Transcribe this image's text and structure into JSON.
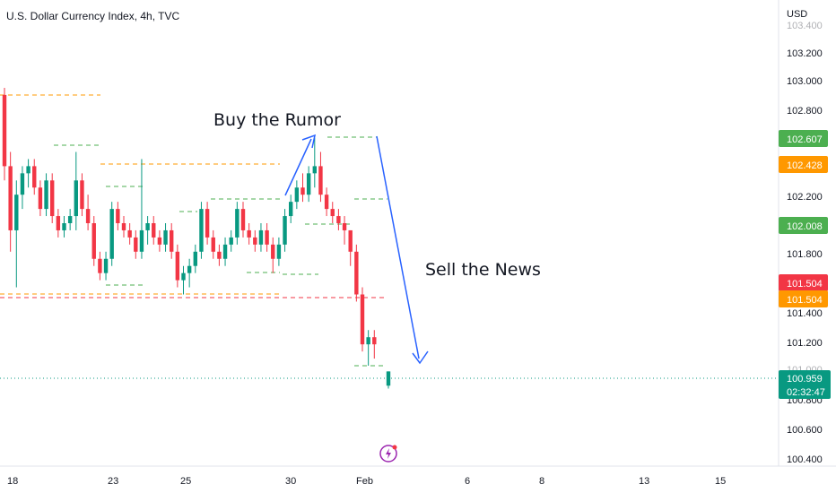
{
  "header": {
    "title": "U.S. Dollar Currency Index, 4h, TVC"
  },
  "chart_data": {
    "type": "candlestick",
    "currency": "USD",
    "y_ticks": [
      "103.400",
      "103.200",
      "103.000",
      "102.800",
      "102.200",
      "101.800",
      "101.400",
      "101.200",
      "101.000",
      "100.800",
      "100.600",
      "100.400"
    ],
    "x_ticks": [
      "18",
      "23",
      "25",
      "30",
      "Feb",
      "6",
      "8",
      "13",
      "15"
    ],
    "colors": {
      "up": "#089981",
      "down": "#f23645",
      "arrow": "#2962ff",
      "dash_orange": "#ff9800",
      "dash_green": "#4caf50",
      "dash_red": "#f23645"
    },
    "annotations": [
      {
        "text": "Buy the Rumor"
      },
      {
        "text": "Sell the News"
      }
    ],
    "price_badges": [
      {
        "label": "102.607",
        "color": "#4caf50"
      },
      {
        "label": "102.428",
        "color": "#ff9800"
      },
      {
        "label": "102.008",
        "color": "#4caf50"
      },
      {
        "label": "101.504",
        "color": "#f23645"
      },
      {
        "label": "101.504",
        "color": "#ff9800"
      },
      {
        "label": "100.959",
        "sublabel": "02:32:47",
        "color": "#089981"
      }
    ],
    "candles": [
      [
        102.9,
        102.95,
        102.3,
        102.4
      ],
      [
        102.4,
        102.5,
        101.8,
        101.95
      ],
      [
        101.95,
        102.3,
        101.55,
        102.2
      ],
      [
        102.2,
        102.4,
        102.1,
        102.35
      ],
      [
        102.35,
        102.45,
        102.25,
        102.4
      ],
      [
        102.4,
        102.45,
        102.2,
        102.25
      ],
      [
        102.25,
        102.3,
        102.05,
        102.1
      ],
      [
        102.1,
        102.35,
        102.05,
        102.3
      ],
      [
        102.3,
        102.35,
        102.0,
        102.05
      ],
      [
        102.05,
        102.1,
        101.9,
        101.95
      ],
      [
        101.95,
        102.05,
        101.9,
        102.0
      ],
      [
        102.0,
        102.1,
        101.95,
        102.05
      ],
      [
        102.05,
        102.5,
        101.95,
        102.3
      ],
      [
        102.3,
        102.35,
        102.05,
        102.1
      ],
      [
        102.1,
        102.2,
        101.95,
        102.0
      ],
      [
        102.0,
        102.05,
        101.7,
        101.75
      ],
      [
        101.75,
        101.8,
        101.6,
        101.65
      ],
      [
        101.65,
        101.8,
        101.6,
        101.75
      ],
      [
        101.75,
        102.15,
        101.7,
        102.1
      ],
      [
        102.1,
        102.15,
        101.95,
        102.0
      ],
      [
        102.0,
        102.05,
        101.9,
        101.95
      ],
      [
        101.95,
        102.0,
        101.85,
        101.9
      ],
      [
        101.9,
        101.95,
        101.75,
        101.8
      ],
      [
        101.8,
        102.45,
        101.75,
        101.95
      ],
      [
        101.95,
        102.05,
        101.85,
        102.0
      ],
      [
        102.0,
        102.05,
        101.85,
        101.9
      ],
      [
        101.9,
        101.95,
        101.8,
        101.85
      ],
      [
        101.85,
        102.0,
        101.8,
        101.95
      ],
      [
        101.95,
        102.0,
        101.75,
        101.8
      ],
      [
        101.8,
        101.85,
        101.55,
        101.6
      ],
      [
        101.6,
        101.7,
        101.5,
        101.65
      ],
      [
        101.65,
        101.75,
        101.55,
        101.7
      ],
      [
        101.7,
        101.85,
        101.65,
        101.8
      ],
      [
        101.8,
        102.15,
        101.75,
        102.1
      ],
      [
        102.1,
        102.15,
        101.85,
        101.9
      ],
      [
        101.9,
        101.95,
        101.75,
        101.8
      ],
      [
        101.8,
        101.85,
        101.7,
        101.75
      ],
      [
        101.75,
        101.9,
        101.7,
        101.85
      ],
      [
        101.85,
        101.95,
        101.8,
        101.9
      ],
      [
        101.9,
        102.15,
        101.85,
        102.1
      ],
      [
        102.1,
        102.15,
        101.9,
        101.95
      ],
      [
        101.95,
        102.0,
        101.85,
        101.9
      ],
      [
        101.9,
        101.95,
        101.8,
        101.85
      ],
      [
        101.85,
        102.0,
        101.8,
        101.95
      ],
      [
        101.95,
        102.0,
        101.8,
        101.85
      ],
      [
        101.85,
        101.9,
        101.65,
        101.75
      ],
      [
        101.75,
        101.9,
        101.7,
        101.85
      ],
      [
        101.85,
        102.1,
        101.8,
        102.05
      ],
      [
        102.05,
        102.2,
        102.0,
        102.15
      ],
      [
        102.15,
        102.3,
        102.1,
        102.25
      ],
      [
        102.25,
        102.35,
        102.15,
        102.2
      ],
      [
        102.2,
        102.4,
        102.15,
        102.35
      ],
      [
        102.35,
        102.6,
        102.25,
        102.4
      ],
      [
        102.4,
        102.5,
        102.15,
        102.2
      ],
      [
        102.2,
        102.25,
        102.05,
        102.1
      ],
      [
        102.1,
        102.15,
        102.0,
        102.05
      ],
      [
        102.05,
        102.1,
        101.95,
        102.0
      ],
      [
        102.0,
        102.05,
        101.85,
        101.95
      ],
      [
        101.95,
        101.95,
        101.7,
        101.8
      ],
      [
        101.8,
        101.85,
        101.45,
        101.5
      ],
      [
        101.5,
        101.55,
        101.1,
        101.15
      ],
      [
        101.15,
        101.25,
        101.0,
        101.2
      ],
      [
        101.2,
        101.25,
        101.05,
        101.15
      ],
      [
        100.86,
        100.96,
        100.84,
        100.96
      ]
    ]
  }
}
